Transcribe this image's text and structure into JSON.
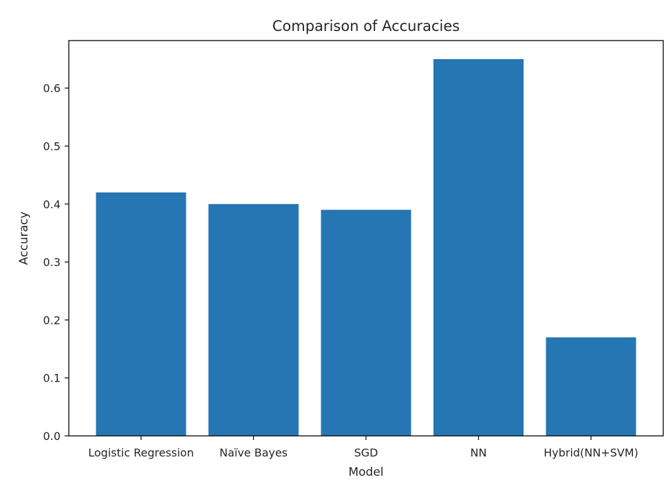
{
  "chart_data": {
    "type": "bar",
    "title": "Comparison of Accuracies",
    "xlabel": "Model",
    "ylabel": "Accuracy",
    "categories": [
      "Logistic Regression",
      "Naïve Bayes",
      "SGD",
      "NN",
      "Hybrid(NN+SVM)"
    ],
    "values": [
      0.42,
      0.4,
      0.39,
      0.65,
      0.17
    ],
    "ylim": [
      0.0,
      0.682
    ],
    "yticks": [
      0.0,
      0.1,
      0.2,
      0.3,
      0.4,
      0.5,
      0.6
    ],
    "ytick_labels": [
      "0.0",
      "0.1",
      "0.2",
      "0.3",
      "0.4",
      "0.5",
      "0.6"
    ],
    "bar_color": "#2676b3",
    "grid": false,
    "legend": "none"
  }
}
